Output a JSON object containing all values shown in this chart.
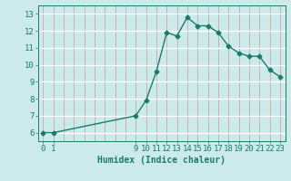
{
  "x": [
    0,
    1,
    9,
    10,
    11,
    12,
    13,
    14,
    15,
    16,
    17,
    18,
    19,
    20,
    21,
    22,
    23
  ],
  "y": [
    6.0,
    6.0,
    7.0,
    7.9,
    9.6,
    11.9,
    11.7,
    12.8,
    12.3,
    12.3,
    11.9,
    11.1,
    10.7,
    10.5,
    10.5,
    9.7,
    9.3
  ],
  "line_color": "#1a7a6e",
  "bg_color": "#cceaea",
  "grid_pink_color": "#c9a8a8",
  "grid_white_color": "#e8f5f5",
  "xlabel": "Humidex (Indice chaleur)",
  "yticks": [
    6,
    7,
    8,
    9,
    10,
    11,
    12,
    13
  ],
  "xtick_labels_show": [
    0,
    1,
    9,
    10,
    11,
    12,
    13,
    14,
    15,
    16,
    17,
    18,
    19,
    20,
    21,
    22,
    23
  ],
  "xlim": [
    -0.5,
    23.5
  ],
  "ylim": [
    5.5,
    13.5
  ],
  "marker": "D",
  "marker_size": 2.5,
  "linewidth": 1.0,
  "xlabel_fontsize": 7,
  "tick_fontsize": 6.5
}
